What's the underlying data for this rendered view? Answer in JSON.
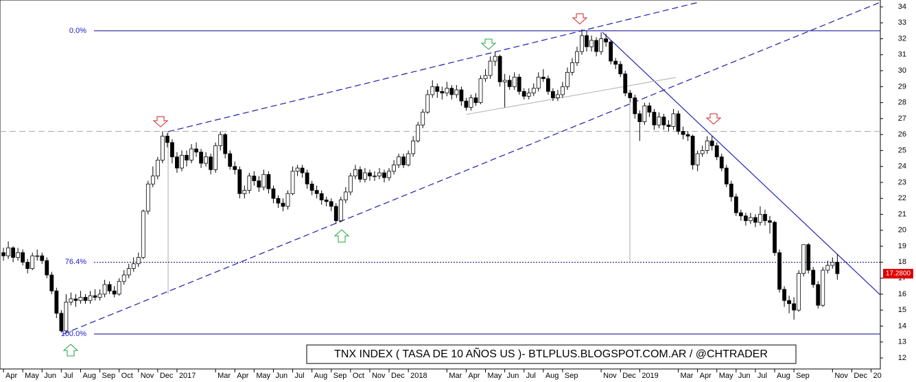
{
  "chart_data": {
    "type": "candlestick",
    "title": "TNX INDEX ( TASA DE 10 AÑOS US )- BTLPLUS.BLOGSPOT.COM.AR / @CHTRADER",
    "xlim": [
      -0.18,
      45.48
    ],
    "ylim": [
      11.31,
      34.43
    ],
    "yticks": [
      12,
      13,
      14,
      15,
      16,
      17,
      18,
      19,
      20,
      21,
      22,
      23,
      24,
      25,
      26,
      27,
      28,
      29,
      30,
      31,
      32,
      33,
      34
    ],
    "xticks": [
      {
        "value": 0,
        "label": "Apr"
      },
      {
        "value": 1,
        "label": "May"
      },
      {
        "value": 2,
        "label": "Jun"
      },
      {
        "value": 3,
        "label": "Jul"
      },
      {
        "value": 4,
        "label": "Aug"
      },
      {
        "value": 5,
        "label": "Sep"
      },
      {
        "value": 6,
        "label": "Oct"
      },
      {
        "value": 7,
        "label": "Nov"
      },
      {
        "value": 8,
        "label": "Dec"
      },
      {
        "value": 9,
        "label": "2017"
      },
      {
        "value": 11,
        "label": "Mar"
      },
      {
        "value": 12,
        "label": "Apr"
      },
      {
        "value": 13,
        "label": "May"
      },
      {
        "value": 14,
        "label": "Jun"
      },
      {
        "value": 15,
        "label": "Jul"
      },
      {
        "value": 16,
        "label": "Aug"
      },
      {
        "value": 17,
        "label": "Sep"
      },
      {
        "value": 18,
        "label": "Oct"
      },
      {
        "value": 19,
        "label": "Nov"
      },
      {
        "value": 20,
        "label": "Dec"
      },
      {
        "value": 21,
        "label": "2018"
      },
      {
        "value": 23,
        "label": "Mar"
      },
      {
        "value": 24,
        "label": "Apr"
      },
      {
        "value": 25,
        "label": "May"
      },
      {
        "value": 26,
        "label": "Jun"
      },
      {
        "value": 27,
        "label": "Jul"
      },
      {
        "value": 28,
        "label": "Aug"
      },
      {
        "value": 29,
        "label": "Sep"
      },
      {
        "value": 31,
        "label": "Nov"
      },
      {
        "value": 32,
        "label": "Dec"
      },
      {
        "value": 33,
        "label": "2019"
      },
      {
        "value": 35,
        "label": "Mar"
      },
      {
        "value": 36,
        "label": "Apr"
      },
      {
        "value": 37,
        "label": "May"
      },
      {
        "value": 38,
        "label": "Jun"
      },
      {
        "value": 39,
        "label": "Jul"
      },
      {
        "value": 40,
        "label": "Aug"
      },
      {
        "value": 41,
        "label": "Sep"
      },
      {
        "value": 43,
        "label": "Nov"
      },
      {
        "value": 44,
        "label": "Dec"
      },
      {
        "value": 45,
        "label": "20"
      }
    ],
    "up_color": "#ffffff",
    "down_color": "#000000",
    "x": [
      0,
      0.25,
      0.5,
      0.75,
      1,
      1.25,
      1.5,
      1.75,
      2,
      2.25,
      2.5,
      2.75,
      3,
      3.25,
      3.5,
      3.75,
      4,
      4.25,
      4.5,
      4.75,
      5,
      5.25,
      5.5,
      5.75,
      6,
      6.25,
      6.5,
      6.75,
      7,
      7.25,
      7.5,
      7.75,
      8,
      8.25,
      8.5,
      8.75,
      9,
      9.25,
      9.5,
      9.75,
      10,
      10.25,
      10.5,
      10.75,
      11,
      11.25,
      11.5,
      11.75,
      12,
      12.25,
      12.5,
      12.75,
      13,
      13.25,
      13.5,
      13.75,
      14,
      14.25,
      14.5,
      14.75,
      15,
      15.25,
      15.5,
      15.75,
      16,
      16.25,
      16.5,
      16.75,
      17,
      17.25,
      17.5,
      17.75,
      18,
      18.25,
      18.5,
      18.75,
      19,
      19.25,
      19.5,
      19.75,
      20,
      20.25,
      20.5,
      20.75,
      21,
      21.25,
      21.5,
      21.75,
      22,
      22.25,
      22.5,
      22.75,
      23,
      23.25,
      23.5,
      23.75,
      24,
      24.25,
      24.5,
      24.75,
      25,
      25.25,
      25.5,
      25.75,
      26,
      26.25,
      26.5,
      26.75,
      27,
      27.25,
      27.5,
      27.75,
      28,
      28.25,
      28.5,
      28.75,
      29,
      29.25,
      29.5,
      29.75,
      30,
      30.25,
      30.5,
      30.75,
      31,
      31.25,
      31.5,
      31.75,
      32,
      32.25,
      32.5,
      32.75,
      33,
      33.25,
      33.5,
      33.75,
      34,
      34.25,
      34.5,
      34.75,
      35,
      35.25,
      35.5,
      35.75,
      36,
      36.25,
      36.5,
      36.75,
      37,
      37.25,
      37.5,
      37.75,
      38,
      38.25,
      38.5,
      38.75,
      39,
      39.25,
      39.5,
      39.75,
      40,
      40.25,
      40.5,
      40.75,
      41,
      41.25,
      41.5,
      41.75,
      42,
      42.25,
      42.5,
      42.75,
      43,
      43.25
    ],
    "candles": [
      [
        18.6,
        18.9,
        18.1,
        18.4
      ],
      [
        18.4,
        19.3,
        18.2,
        18.9
      ],
      [
        18.9,
        19.0,
        18.0,
        18.3
      ],
      [
        18.3,
        18.9,
        18.1,
        18.6
      ],
      [
        18.6,
        18.8,
        17.8,
        18.0
      ],
      [
        18.0,
        18.2,
        17.3,
        17.6
      ],
      [
        17.6,
        18.6,
        17.5,
        18.4
      ],
      [
        18.4,
        18.8,
        18.1,
        18.4
      ],
      [
        18.4,
        18.6,
        17.9,
        18.1
      ],
      [
        18.1,
        18.3,
        17.0,
        17.2
      ],
      [
        17.2,
        17.4,
        16.0,
        16.2
      ],
      [
        16.2,
        16.4,
        14.5,
        14.8
      ],
      [
        14.8,
        15.0,
        13.6,
        13.7
      ],
      [
        13.7,
        16.0,
        13.6,
        15.5
      ],
      [
        15.5,
        16.1,
        15.3,
        15.7
      ],
      [
        15.7,
        16.0,
        15.2,
        15.6
      ],
      [
        15.6,
        16.2,
        15.4,
        15.8
      ],
      [
        15.8,
        16.0,
        15.4,
        15.6
      ],
      [
        15.6,
        16.2,
        15.4,
        15.9
      ],
      [
        15.9,
        16.3,
        15.6,
        15.8
      ],
      [
        15.8,
        16.3,
        15.6,
        16.0
      ],
      [
        16.0,
        16.9,
        15.8,
        16.6
      ],
      [
        16.6,
        16.8,
        16.0,
        16.2
      ],
      [
        16.2,
        16.5,
        15.8,
        16.0
      ],
      [
        16.0,
        17.0,
        15.9,
        16.8
      ],
      [
        16.8,
        17.5,
        16.6,
        17.2
      ],
      [
        17.2,
        17.9,
        17.0,
        17.6
      ],
      [
        17.6,
        18.3,
        17.4,
        17.9
      ],
      [
        17.9,
        18.6,
        17.7,
        18.3
      ],
      [
        18.3,
        21.3,
        18.2,
        21.2
      ],
      [
        21.2,
        23.1,
        21.0,
        22.9
      ],
      [
        22.9,
        24.0,
        22.7,
        23.4
      ],
      [
        23.4,
        24.6,
        23.2,
        24.4
      ],
      [
        24.4,
        26.2,
        24.2,
        25.9
      ],
      [
        25.9,
        26.1,
        25.2,
        25.5
      ],
      [
        25.5,
        25.7,
        24.2,
        24.6
      ],
      [
        24.6,
        24.9,
        23.6,
        23.9
      ],
      [
        23.9,
        25.0,
        23.7,
        24.7
      ],
      [
        24.7,
        25.0,
        24.0,
        24.4
      ],
      [
        24.4,
        25.4,
        24.2,
        25.1
      ],
      [
        25.1,
        25.5,
        24.6,
        24.9
      ],
      [
        24.9,
        25.1,
        23.9,
        24.2
      ],
      [
        24.2,
        24.9,
        24.0,
        24.6
      ],
      [
        24.6,
        24.8,
        23.5,
        23.8
      ],
      [
        23.8,
        25.5,
        23.6,
        25.3
      ],
      [
        25.3,
        26.2,
        25.0,
        26.0
      ],
      [
        26.0,
        26.1,
        24.5,
        24.8
      ],
      [
        24.8,
        25.0,
        23.8,
        24.0
      ],
      [
        24.0,
        24.3,
        23.5,
        23.8
      ],
      [
        23.8,
        24.0,
        22.0,
        22.3
      ],
      [
        22.3,
        22.8,
        22.0,
        22.5
      ],
      [
        22.5,
        23.6,
        22.3,
        23.4
      ],
      [
        23.4,
        23.7,
        22.8,
        23.1
      ],
      [
        23.1,
        23.4,
        22.4,
        22.7
      ],
      [
        22.7,
        23.8,
        22.5,
        23.5
      ],
      [
        23.5,
        23.7,
        22.3,
        22.6
      ],
      [
        22.6,
        22.8,
        21.7,
        22.0
      ],
      [
        22.0,
        22.2,
        21.4,
        21.7
      ],
      [
        21.7,
        22.0,
        21.2,
        21.5
      ],
      [
        21.5,
        22.5,
        21.3,
        22.3
      ],
      [
        22.3,
        24.0,
        22.2,
        23.7
      ],
      [
        23.7,
        24.1,
        23.4,
        23.9
      ],
      [
        23.9,
        24.1,
        23.3,
        23.6
      ],
      [
        23.6,
        23.8,
        22.6,
        22.9
      ],
      [
        22.9,
        23.1,
        22.2,
        22.5
      ],
      [
        22.5,
        22.8,
        22.0,
        22.3
      ],
      [
        22.3,
        22.5,
        21.6,
        21.9
      ],
      [
        21.9,
        22.1,
        21.5,
        21.8
      ],
      [
        21.8,
        22.0,
        21.2,
        21.5
      ],
      [
        21.5,
        21.7,
        20.4,
        20.6
      ],
      [
        20.6,
        22.1,
        20.5,
        21.9
      ],
      [
        21.9,
        22.7,
        21.7,
        22.4
      ],
      [
        22.4,
        23.6,
        22.2,
        23.4
      ],
      [
        23.4,
        24.1,
        23.2,
        23.8
      ],
      [
        23.8,
        24.0,
        23.0,
        23.2
      ],
      [
        23.2,
        23.9,
        23.0,
        23.6
      ],
      [
        23.6,
        23.8,
        23.1,
        23.4
      ],
      [
        23.4,
        23.7,
        23.1,
        23.4
      ],
      [
        23.4,
        23.9,
        23.2,
        23.6
      ],
      [
        23.6,
        23.8,
        23.0,
        23.3
      ],
      [
        23.3,
        23.9,
        23.1,
        23.7
      ],
      [
        23.7,
        24.4,
        23.5,
        24.1
      ],
      [
        24.1,
        24.8,
        23.9,
        24.6
      ],
      [
        24.6,
        24.8,
        23.9,
        24.1
      ],
      [
        24.1,
        25.0,
        24.0,
        24.8
      ],
      [
        24.8,
        25.9,
        24.6,
        25.6
      ],
      [
        25.6,
        26.8,
        25.5,
        26.6
      ],
      [
        26.6,
        27.6,
        26.4,
        27.4
      ],
      [
        27.4,
        28.8,
        27.3,
        28.5
      ],
      [
        28.5,
        29.4,
        28.3,
        29.0
      ],
      [
        29.0,
        29.2,
        28.3,
        28.7
      ],
      [
        28.7,
        29.0,
        28.2,
        28.6
      ],
      [
        28.6,
        29.3,
        28.4,
        28.9
      ],
      [
        28.9,
        29.1,
        28.2,
        28.5
      ],
      [
        28.5,
        29.1,
        28.3,
        28.8
      ],
      [
        28.8,
        29.0,
        27.8,
        28.1
      ],
      [
        28.1,
        28.3,
        27.5,
        27.7
      ],
      [
        27.7,
        28.5,
        27.5,
        28.3
      ],
      [
        28.3,
        28.6,
        27.8,
        28.0
      ],
      [
        28.0,
        29.7,
        27.9,
        29.5
      ],
      [
        29.5,
        30.1,
        29.3,
        29.7
      ],
      [
        29.7,
        30.9,
        29.5,
        30.6
      ],
      [
        30.6,
        31.2,
        30.3,
        30.9
      ],
      [
        30.9,
        31.0,
        29.0,
        29.3
      ],
      [
        29.3,
        29.8,
        27.7,
        29.4
      ],
      [
        29.4,
        29.7,
        28.8,
        29.0
      ],
      [
        29.0,
        29.9,
        28.8,
        29.6
      ],
      [
        29.6,
        29.8,
        28.5,
        28.7
      ],
      [
        28.7,
        28.9,
        28.2,
        28.4
      ],
      [
        28.4,
        28.9,
        28.2,
        28.6
      ],
      [
        28.6,
        29.2,
        28.4,
        28.9
      ],
      [
        28.9,
        29.9,
        28.7,
        29.6
      ],
      [
        29.6,
        30.1,
        29.3,
        29.5
      ],
      [
        29.5,
        29.7,
        28.5,
        28.7
      ],
      [
        28.7,
        28.9,
        28.1,
        28.3
      ],
      [
        28.3,
        28.8,
        28.1,
        28.5
      ],
      [
        28.5,
        29.3,
        28.3,
        29.0
      ],
      [
        29.0,
        30.2,
        28.8,
        29.9
      ],
      [
        29.9,
        30.8,
        29.7,
        30.5
      ],
      [
        30.5,
        31.5,
        30.3,
        31.2
      ],
      [
        31.2,
        32.6,
        31.0,
        32.2
      ],
      [
        32.2,
        32.5,
        31.2,
        31.5
      ],
      [
        31.5,
        32.2,
        31.2,
        31.9
      ],
      [
        31.9,
        32.1,
        30.9,
        31.2
      ],
      [
        31.2,
        32.4,
        31.0,
        32.0
      ],
      [
        32.0,
        32.3,
        31.5,
        31.8
      ],
      [
        31.8,
        31.9,
        30.4,
        30.6
      ],
      [
        30.6,
        30.8,
        30.1,
        30.4
      ],
      [
        30.4,
        30.6,
        29.6,
        29.8
      ],
      [
        29.8,
        30.0,
        28.4,
        28.6
      ],
      [
        28.6,
        28.8,
        28.0,
        28.3
      ],
      [
        28.3,
        28.5,
        27.0,
        27.3
      ],
      [
        27.3,
        27.5,
        25.6,
        26.8
      ],
      [
        26.8,
        28.0,
        26.6,
        27.8
      ],
      [
        27.8,
        28.0,
        27.1,
        27.4
      ],
      [
        27.4,
        27.6,
        26.3,
        26.6
      ],
      [
        26.6,
        27.4,
        26.4,
        27.1
      ],
      [
        27.1,
        27.3,
        26.3,
        26.6
      ],
      [
        26.6,
        26.9,
        26.2,
        26.5
      ],
      [
        26.5,
        27.6,
        26.3,
        27.3
      ],
      [
        27.3,
        27.5,
        26.0,
        26.2
      ],
      [
        26.2,
        26.5,
        25.7,
        26.0
      ],
      [
        26.0,
        26.2,
        25.6,
        25.9
      ],
      [
        25.9,
        26.0,
        23.8,
        24.1
      ],
      [
        24.1,
        25.0,
        23.7,
        24.8
      ],
      [
        24.8,
        25.3,
        24.6,
        25.0
      ],
      [
        25.0,
        25.9,
        24.8,
        25.6
      ],
      [
        25.6,
        25.9,
        25.0,
        25.3
      ],
      [
        25.3,
        25.5,
        24.4,
        24.6
      ],
      [
        24.6,
        24.8,
        23.7,
        23.9
      ],
      [
        23.9,
        24.1,
        22.7,
        22.9
      ],
      [
        22.9,
        23.1,
        21.8,
        22.1
      ],
      [
        22.1,
        22.3,
        20.9,
        21.1
      ],
      [
        21.1,
        21.3,
        20.6,
        20.9
      ],
      [
        20.9,
        21.1,
        20.3,
        20.6
      ],
      [
        20.6,
        21.1,
        20.4,
        20.8
      ],
      [
        20.8,
        21.0,
        20.2,
        20.5
      ],
      [
        20.5,
        21.5,
        20.3,
        21.0
      ],
      [
        21.0,
        21.3,
        20.3,
        20.6
      ],
      [
        20.6,
        20.9,
        19.8,
        20.5
      ],
      [
        20.5,
        20.6,
        18.4,
        18.6
      ],
      [
        18.6,
        18.8,
        16.1,
        16.3
      ],
      [
        16.3,
        16.5,
        15.2,
        15.6
      ],
      [
        15.6,
        15.9,
        14.8,
        15.4
      ],
      [
        15.4,
        15.8,
        14.4,
        15.0
      ],
      [
        15.0,
        17.5,
        14.9,
        17.3
      ],
      [
        17.3,
        19.1,
        17.1,
        19.1
      ],
      [
        19.1,
        19.2,
        17.3,
        17.5
      ],
      [
        17.5,
        17.7,
        16.4,
        16.6
      ],
      [
        16.6,
        16.8,
        15.1,
        15.3
      ],
      [
        15.3,
        17.7,
        15.2,
        17.5
      ],
      [
        17.5,
        18.1,
        17.3,
        17.8
      ],
      [
        17.8,
        18.3,
        17.6,
        18.0
      ],
      [
        18.0,
        18.5,
        16.9,
        17.28
      ]
    ],
    "price_tag": {
      "value": 17.28,
      "label": "17.2800"
    },
    "levels": [
      {
        "label": "0.0%",
        "value": 32.5,
        "style": "solid",
        "color": "#00008b"
      },
      {
        "label": "76.4%",
        "value": 18.0,
        "style": "dotted",
        "color": "#00008b"
      },
      {
        "label": "100.0%",
        "value": 13.5,
        "style": "solid",
        "color": "#00008b"
      }
    ],
    "support": {
      "value": 26.2,
      "style": "dashed",
      "color": "#aaaaaa"
    },
    "trendlines": [
      {
        "style": "dashed",
        "color": "#1a1ab0",
        "points": [
          [
            8.54,
            26.18
          ],
          [
            36.1,
            34.3
          ]
        ]
      },
      {
        "style": "dashed",
        "color": "#1a1ab0",
        "points": [
          [
            3.1,
            13.5
          ],
          [
            45.5,
            34.3
          ]
        ]
      },
      {
        "style": "solid",
        "color": "#2020b0",
        "points": [
          [
            31.07,
            32.41
          ],
          [
            45.48,
            15.95
          ]
        ]
      },
      {
        "style": "solid",
        "color": "#bbbbbb",
        "points": [
          [
            24.02,
            27.26
          ],
          [
            34.88,
            29.58
          ]
        ]
      }
    ],
    "verticals": [
      {
        "x": 8.54,
        "y": [
          16.0,
          26.2
        ]
      },
      {
        "x": 32.49,
        "y": [
          18.0,
          28.0
        ]
      }
    ]
  }
}
